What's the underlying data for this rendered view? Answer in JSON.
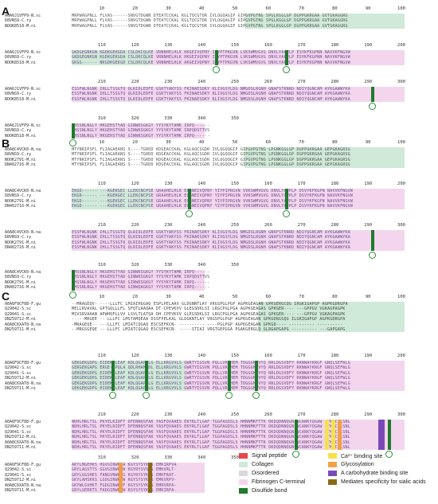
{
  "panels": [
    {
      "letter": "A",
      "blocks": [
        {
          "ticks": [
            "10",
            "20",
            "30",
            "40",
            "50",
            "60",
            "70",
            "80",
            "90",
            "100"
          ],
          "rows": [
            {
              "label": "A0A6J1VFP9-N.sc",
              "seq": "MRPWAGPNLL FLVAS------SNVGTDGWN DTEATCCKAL KGLTQCGTDR IVLQGQAGIP GIPGVPGTNG SPGLKGGLGP DGPPGKRGAA GVTGKAGGRG"
            },
            {
              "label": "D8VNS9-C.ry",
              "seq": "MRPWAGPNLL FLVAS------SNVGTDGWN DTEATCCKAL KGLTQCGTDR IVLQGQAGIP GIPGVPGTNG SPGLKGGLGP DGPPGKRGAA GVTGKAGGRG"
            },
            {
              "label": "NOOK8518-M.ni",
              "seq": "MRPWAGPNLL FLVAS------SNVGTDGWN DTEATCCKAL KGLTQCGTDR IVLQGQAGIP GIPGVPGTNG SPGLKGGLGP DGPPGKRGAA GVTGKAGGRG"
            }
          ]
        },
        {
          "ticks": [
            "110",
            "120",
            "130",
            "140",
            "150",
            "160",
            "170",
            "180",
            "190",
            "200"
          ],
          "rows": [
            {
              "label": "A0A6J1VFP9-N.sc",
              "seq": "GKDGEGNKGN KGDKGEKGDA CSLDKCQLKE VRNNHELHLK HKGEIVQPNY IIYPTPKGVN LVKSWMVGVG DNVLYAPPLP ESYKFKGPNN NAVVKFNGVW"
            },
            {
              "label": "D8VNS9-C.ry",
              "seq": "GKDGEGNKGN KGDKGEKGDA CSLDKCQLKE VRNNHELHLK HKGEIVQPNY IIYPTPKGVN LVKSWMVGVG DNVLYAPPLP ESYKFKGPNN NAVVKFNGVW"
            },
            {
              "label": "NOOK8518-M.ni",
              "seq": "GKGG------ NKGDKGEKGD CSLDKCQLKE VRNNHELHLK AKGEIVQPNY IIYPTPKGVN LVKSWMVGVG DNVLYAPPLP ESYKFKGPNN NAVVKFNGVW"
            }
          ]
        },
        {
          "ticks": [
            "210",
            "220",
            "230",
            "240",
            "250",
            "260",
            "270",
            "280",
            "290",
            "300"
          ],
          "rows": [
            {
              "label": "A0A6J1VFP9-N.sc",
              "seq": "ESSFWLNGNK IHLLTSSGTQ QLRIDLEDFE GSKTYAKYSS FKINAESDKY KLIVGSYLDG NMGDSLRGNH GNAFSTKNRD NDIYQGNCAM AYKGAWWYKA"
            },
            {
              "label": "D8VNS9-C.ry",
              "seq": "ESSFWLNGNK IHLLTSSGTQ QLRIDLEDFE GSKTYAKYSS FKINAESDKY KLIVGSYLDG NMGDSLRGNH GNAFSTKNRD NDIYQGNCAM AYKGAWWYKA"
            },
            {
              "label": "NOOK8518-M.ni",
              "seq": "ESSFWLNGNK IHLLTSSGTQ QLRIDLEDFE GSKTYAKYSS FKINAESDKY KLIVGSYLDG NMGDSLRGNH GNAFSTKNRD NDIYQGNCAM AYKGAWWYKA"
            }
          ]
        },
        {
          "ticks": [
            "310",
            "320",
            "330",
            "340",
            "350"
          ],
          "rows": [
            {
              "label": "A0A6J1VFP9-N.sc",
              "seq": "CHSSNLNGLY HKGEHSTYAD GINWKSGKGY YYSYKYTAMK IRPQ------"
            },
            {
              "label": "D8VNS9-C.ry",
              "seq": "CHSSNLNGLY HKGEHSTYAD GINWKSGKGY YYSYKYTAMK IRPQDSTTVS"
            },
            {
              "label": "NOOK8518-M.ni",
              "seq": "CHSSNLNGLY HKGEHSTYAD GINWKSGKGY YYSYKYTAMK IRPQ------"
            }
          ]
        }
      ]
    },
    {
      "letter": "B",
      "blocks": [
        {
          "ticks": [
            "10",
            "20",
            "30",
            "40",
            "50",
            "60",
            "70",
            "80",
            "90",
            "100"
          ],
          "rows": [
            {
              "label": "A0A8C4VCK0-N.na",
              "seq": "MTYNRIPSFL FLIAGAEANS S----TGRDD KDGEACCKAL KGLAQCSGDR IVLQGQQGIP GIPGVPGTNG LPGNKGGLGP DGPPGKRGAA GEPGKAGRSG"
            },
            {
              "label": "D8VNS9-C.ry",
              "seq": "MTYNRIPSFL FLIAGAEANS S----TGRDD KDGEACCKAL KGLAQCSGDR IVLQGQQGIP GIPGVPGTNG LPGNKGGLGP DGPPGKRGAA GEPGKAGRSG"
            },
            {
              "label": "NOOK2791-M.ni",
              "seq": "MTYNRIPSFL FLIAGAEANS S----TGRDD KDGEACCKAL KGLAQCSGDR IVLQGQQGIP GIPGVPGTNG LPGNKGGLGP DGPPGKRGAA GEPGKAGRSG"
            },
            {
              "label": "DN402716-M.ni",
              "seq": "MTYNRIPSFL FLIAGAEANS S----TGRDD KDGEACCKAL KGLAQCSGDR IVLQGQQGIP GIPGVPGTNG LPGNKGGLGP DGPPGKRGAA GEPGKAGRSG"
            }
          ]
        },
        {
          "ticks": [
            "110",
            "120",
            "130",
            "140",
            "150",
            "160",
            "170",
            "180",
            "190",
            "200"
          ],
          "rows": [
            {
              "label": "A0A8C4VCK0-N.na",
              "seq": "EKGD------ ---KGEKGEC LLEKCNCPSE GRAAHELHLK EQGNEIVQPNY YIYPIPRGVN VVKSWMVGVG DNVLYAPPLP DSVYKFKGPN NAVVKFNGVW"
            },
            {
              "label": "D8VNS9-C.ry",
              "seq": "EKGD------ ---KGEKGEC LLEKCNCPSE GRAAHELHLK EQGNEIVQPNY YIYPIPRGVN VVKSWMVGVG DNVLYAPPLP DSVYKFKGPN NAVVKFNGVW"
            },
            {
              "label": "NOOK2791-M.ni",
              "seq": "EKGD------ ---KGEKGEC LLEKCNCPSE GRAAHELHLK EQGNEIVQPNY YIYPIPRGVN VVKSWMVGVG DNVLYAPPLP DSVYKFKGPN NAVVKFNGVW"
            },
            {
              "label": "DN402716-M.ni",
              "seq": "EKGD------ ---KGEKGEC LLEKCNCPSE GRAAHELHLK EQGNEIVQPNY YIYPIPRGVN VVKSWMVGVG DNVLYAPPLP DSVYKFKGPN NAVVKFNGVW"
            }
          ]
        },
        {
          "ticks": [
            "210",
            "220",
            "230",
            "240",
            "250",
            "260",
            "270",
            "280",
            "290",
            "300"
          ],
          "rows": [
            {
              "label": "A0A8C4VCK0-N.na",
              "seq": "ESSFWLNGNK IHLLTSSGTQ QLRIDLEDFE GSKTYAKYSS FKINAESDKY KLIVGSYLDG NMGDSLRGNH GNAFSTKNRD NDIYQGNCAM AYKGAWWYKA"
            },
            {
              "label": "D8VNS9-C.ry",
              "seq": "ESSFWLNGNK IHLLTSSGTQ QLRIDLEDFE GSKTYAKYSS FKINAESDKY KLIVGSYLDG NMGDSLRGNH GNAFSTKNRD NDIYQGNCAM AYKGAWWYKA"
            },
            {
              "label": "NOOK2791-M.ni",
              "seq": "ESSFWLNGNK IHLLTSSGTQ QLRIDLEDFE GSKTYAKYSS FKINAESDKY KLIVGSYLDG NMGDSLRGNH GNAFSTKNRD NDIYQGNCAM AYKGAWWYKA"
            },
            {
              "label": "DN402716-M.ni",
              "seq": "ESSFWLNGNK IHLLTSSGTQ QLRIDLEDFE GSKTYAKYSS FKINAESDKY KLIVGSYLDG NMGDSLRGNH GNAFSTKNRD NDIYQGNCAM AYKGAWWYKA"
            }
          ]
        },
        {
          "ticks": [
            "310",
            "320",
            "330",
            "340",
            "350"
          ],
          "rows": [
            {
              "label": "A0A8C4VCK0-N.na",
              "seq": "CHSSNLNGLY HKGEHSTYAD GINWKSGKGY YYSYKYTAMK IRPQ------"
            },
            {
              "label": "D8VNS9-C.ry",
              "seq": "CHSSNLNGLY HKGEHSTYAD GINWKSGKGY YYSYKYTAMK IRPQDSTTVS"
            },
            {
              "label": "NOOK2791-M.ni",
              "seq": "CHSSNLNGLY HKGEHSTYAD GINWKSGKGY YYSYKYTAMK IRPQ------"
            },
            {
              "label": "DN402716-M.ni",
              "seq": "CHSSNLNGLY HKGEHSTYAD GINWQAGKGY YYSYKYTAMK IRPQ------"
            }
          ]
        }
      ]
    },
    {
      "letter": "C",
      "blocks": [
        {
          "ticks": [
            "10",
            "20",
            "30",
            "40",
            "50",
            "60",
            "70",
            "80",
            "90",
            "100"
          ],
          "rows": [
            {
              "label": "A0A6F9CF88-F.gu",
              "seq": "--MRAGEQV- ----LLLFC LMIAIHGGAQ ESPLPELAAV GLDGNNTLAY VRGSPGLPGP AGPKGEAGAN GPKGERGCQG IRGKIGAPGP AGPKGDRGPA"
            },
            {
              "label": "Q29042-S.sc",
              "seq": "MELLRVAVAL GPTGQLLLFL SFQTLAAQAA DT-CPEVKVV GLEGSDKLSI LRGCPGLPGA AGPKGEAGAS GPKGER---- ---GPPGV VGKAGPAGPK"
            },
            {
              "label": "Q29041-S.sc",
              "seq": "MSVSRVAAAN APWHQFLLVV LSVLTLATQA DH-CPEVKVV GLEGSDKLSI LRGCPGLPGA AGPKGEAGAS GPKGER---- ---GPPGV VGKAGPAGPK"
            },
            {
              "label": "DN259712-M.ni",
              "seq": "-----MRGEE ---LLLFC LMSTAMQEAA DSSFPELKAL GLDGKNTLAY VRGSPGLPGP AGPKGEAGAN GPKGDRGSQG ILGKIGAPGP AGPKGDRGPA"
            },
            {
              "label": "A0A8C6XAT8-N.na",
              "seq": "-MRAGEQE-- ---LLLFC LMIATCQGAQ ESCSEFKCN- ---------- ----PGLPGP AGPKGEAGAN GPKGD---- ---------- ----------"
            },
            {
              "label": "DN259711-M.ni",
              "seq": "--MRGSGEQE ---LLLFC LMIATCQGAQ ESCSEFKCN- -----STIAI VRGTGEPGGA PGAKGERGLQ GLRGAPGAPG ---------- ---GAPGAPG"
            }
          ]
        },
        {
          "ticks": [
            "110",
            "120",
            "130",
            "140",
            "150",
            "160",
            "170",
            "180",
            "190",
            "200"
          ],
          "rows": [
            {
              "label": "A0A6F9CF88-F.gu",
              "seq": "GEKGEKGDPG EIDEKRLEAF KDLQGAPRLG ELLKRGVVLS GWRTYIGSVN PQLLVRGHEM TDGGGMIVYQ RRLDGSVDFY RKNWAYKRGF GNQLSEFWLG"
            },
            {
              "label": "Q29042-S.sc",
              "seq": "GERGEKGAPG ERGE--PQLA QDLRHAMSDL ELLKRGVVLS GWRTYIGSVN PQLLVRGHEM TDGGGMIVYQ RRLDGSVDFY RKNWAYKRGF GNQLSEFWLG"
            },
            {
              "label": "Q29041-S.sc",
              "seq": "GERGEKGDPG EIDEKRLEAF KDLQGAPRLG ELLKRGVVLS GWRTYIGSVN PQLLVRGHEM TDGGGMIVYQ RRLDGSVDFY RKNWAYKRGF GNQLSEFWLG"
            },
            {
              "label": "DN259712-M.ni",
              "seq": "GEKGEKGDPG EIDEKRLEAF KDLQGAPRLG ELLKRGVVLS GWRTYIGSVN PQLLVRGHEM TDGGGMIVYQ RRLDGSVDFY RKNWAYKRGF GNQLSEFWLG"
            },
            {
              "label": "A0A8C6XAT8-N.na",
              "seq": "GEKGEKGDPG EIDEKRLEAF KDLQGAPRLG ELLKRGVVLS GWRTYIGSVN PQLLVRGHEM TDGGGMIVYQ RRLDGSVDFY RKNWAYKRGF GNQLSEFWLG"
            },
            {
              "label": "DN259711-M.ni",
              "seq": "GEKGEKGDPG EIDEKRLEAF KDLQGAPRLG ELLKRGVVLS GWRTYIGSVN PQLLVRGHEM TDGGGMIVYQ RRLDGSVDFY RKNWAYKRGF GNQLSEFWLG"
            }
          ]
        },
        {
          "ticks": [
            "210",
            "220",
            "230",
            "240",
            "250",
            "260",
            "270",
            "280",
            "290",
            "300"
          ],
          "rows": [
            {
              "label": "A0A6F9CF88-F.gu",
              "seq": "NDHLHRLTSL PKYELRIDFT DFENNQSFAK YASFQVAAES EKYRLTLGAF TGGPAGDSLS HHNNMKFTTK DKDQDNNQGN NCANKYQGAW WYKGCHLSNL"
            },
            {
              "label": "Q29042-S.sc",
              "seq": "NDHLHRLTSL PKYELRIDFT DFENNQSFAK YASFQVAAES EKYRLTLGAF TGGPAGDSLS HHNNMKFTTK DKDQDNNQGN NCANKYQGAW WYKGCHLSNL"
            },
            {
              "label": "Q29041-S.sc",
              "seq": "NDHLHRLTSL PKYELRIDFT DFENNQSFAK YASFQVAAES EKYRLTLGAF TGGPAGDSLS HHNNMKFTTK DKDQDNNQGN NCANKYQGAW WYKGCHLSNL"
            },
            {
              "label": "DN259712-M.ni",
              "seq": "NDHLHRLTSL PKYELRIDFT DFENNQSFAK YASFQVAAES EKYRLTLGAF TGGPAGDSLS HHNNMKFTTK DKDQDNNQGN NCANKYQGAW WYKGCHLSNL"
            },
            {
              "label": "A0A8C6XAT8-N.na",
              "seq": "NDHLHRLTSL PKYELRIDFT DFENNQSFAK YASFQVAAES EKYRLTLGAF TGGPAGDSLS HHNNMKFTTK DKDQDNNQGN NCANKYQGAW WYKGCHLSNL"
            },
            {
              "label": "DN259711-M.ni",
              "seq": "NDHLHRLTSL PKYELRIDFT DFENNQSFAK YASFQVAAES EKYRLTLGAF TGGPAGDSLS HHNNMKFTTK DKDQDNNQGN NCANKYQGAW WYKGCHLSNL"
            }
          ]
        },
        {
          "ticks": [
            "310",
            "320",
            "330",
            "340",
            "350"
          ],
          "rows": [
            {
              "label": "A0A6F9CF88-F.gu",
              "seq": "AKYLMGEHKS HGVGINWRSA KGYSYSYKRS EMKIRPVA"
            },
            {
              "label": "Q29042-S.sc",
              "seq": "GRYLAGSTTS GGVGINWRSW KGYRYSVQYS EMKVRLT-"
            },
            {
              "label": "Q29041-S.sc",
              "seq": "GRYLGGSHES FANGVNWKSG KGYRYSYKVS EMKFRAT-"
            },
            {
              "label": "DN259712-M.ni",
              "seq": "GKYLAHSKKS LGDGINWKSW KGYSYSYKRS EMKVRPV-"
            },
            {
              "label": "A0A8C6XAT8-N.na",
              "seq": "GKYWLGVHKT FGDGINWRKF KGYSYSYKRS EMRVRPA-"
            },
            {
              "label": "DN259711-M.ni",
              "seq": "GRYLGERKTS FADGINWRSW KGYSYSYKRS EMKIRPA-"
            }
          ]
        }
      ]
    }
  ],
  "legend": [
    {
      "label": "Signal peptide",
      "color": "#e8474a"
    },
    {
      "label": "Collagen",
      "color": "#cfead8"
    },
    {
      "label": "Disordered",
      "color": "#d9d9d9"
    },
    {
      "label": "Fibrinogen C-terminal",
      "color": "#f3d6ee"
    },
    {
      "label": "Disulfide bond",
      "color": "#1e7a2c"
    },
    {
      "label": "Ca²⁺ binding site",
      "color": "#f5e24a"
    },
    {
      "label": "Glycosylation",
      "color": "#f0a048"
    },
    {
      "label": "A carbohydrate binding site",
      "color": "#7a49b8"
    },
    {
      "label": "Mediates specificity for sialic acids",
      "color": "#8a6a14"
    }
  ]
}
